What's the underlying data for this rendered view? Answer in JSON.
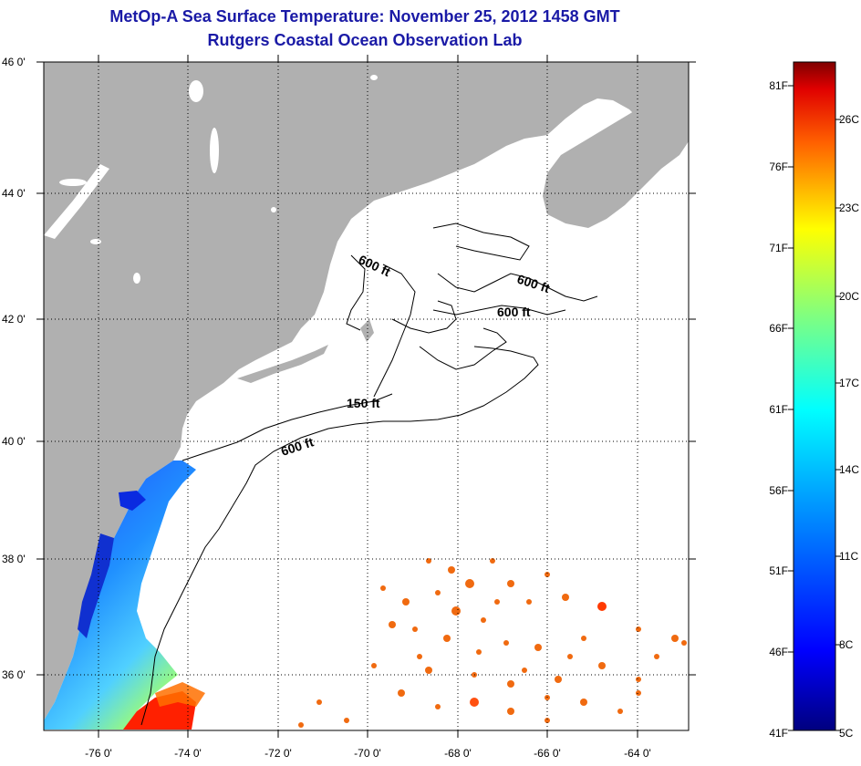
{
  "header": {
    "title": "MetOp-A Sea Surface Temperature:  November 25, 2012 1458 GMT",
    "subtitle": "Rutgers Coastal Ocean Observation Lab"
  },
  "map": {
    "lat_ticks": [
      "46 0'",
      "44 0'",
      "42 0'",
      "40 0'",
      "38 0'",
      "36 0'"
    ],
    "lon_ticks": [
      "-76 0'",
      "-74 0'",
      "-72 0'",
      "-70 0'",
      "-68 0'",
      "-66 0'",
      "-64 0'"
    ],
    "contour_labels": [
      "600 ft",
      "600 ft",
      "600 ft",
      "150 ft",
      "600 ft"
    ],
    "land_color": "#b0b0b0",
    "ocean_no_data_color": "#ffffff"
  },
  "colorbar": {
    "fahrenheit_labels": [
      "81F",
      "76F",
      "71F",
      "66F",
      "61F",
      "56F",
      "51F",
      "46F",
      "41F"
    ],
    "celsius_labels": [
      "26C",
      "23C",
      "20C",
      "17C",
      "14C",
      "11C",
      "8C",
      "5C"
    ]
  }
}
